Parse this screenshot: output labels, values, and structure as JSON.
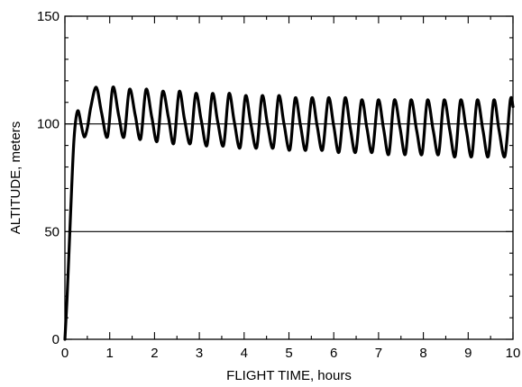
{
  "chart_data": {
    "type": "line",
    "title": "",
    "xlabel": "FLIGHT TIME, hours",
    "ylabel": "ALTITUDE, meters",
    "xlim": [
      0,
      10
    ],
    "ylim": [
      0,
      150
    ],
    "xticks": [
      0,
      1,
      2,
      3,
      4,
      5,
      6,
      7,
      8,
      9,
      10
    ],
    "yticks": [
      0,
      50,
      100,
      150
    ],
    "xtick_labels": [
      "0",
      "1",
      "2",
      "3",
      "4",
      "5",
      "6",
      "7",
      "8",
      "9",
      "10"
    ],
    "ytick_labels": [
      "0",
      "50",
      "100",
      "150"
    ],
    "grid": false,
    "reference_lines_y": [
      50,
      100
    ],
    "line_color": "#000000",
    "series": [
      {
        "x": [
          0,
          0.05,
          0.1,
          0.15,
          0.2,
          0.25,
          0.3,
          0.36,
          0.43,
          0.5,
          0.58,
          0.7,
          0.82,
          0.95,
          1.07,
          1.2,
          1.32,
          1.44,
          1.57,
          1.69,
          1.81,
          1.94,
          2.06,
          2.18,
          2.31,
          2.43,
          2.55,
          2.67,
          2.8,
          2.92,
          3.04,
          3.17,
          3.29,
          3.41,
          3.54,
          3.66,
          3.78,
          3.91,
          4.03,
          4.15,
          4.28,
          4.4,
          4.52,
          4.65,
          4.77,
          4.89,
          5.02,
          5.14,
          5.26,
          5.38,
          5.51,
          5.63,
          5.75,
          5.88,
          6.0,
          6.12,
          6.25,
          6.37,
          6.49,
          6.62,
          6.74,
          6.86,
          6.99,
          7.11,
          7.23,
          7.35,
          7.48,
          7.6,
          7.72,
          7.85,
          7.97,
          8.09,
          8.22,
          8.34,
          8.46,
          8.59,
          8.71,
          8.83,
          8.96,
          9.08,
          9.2,
          9.33,
          9.45,
          9.57,
          9.69,
          9.82,
          9.94,
          10.0
        ],
        "y": [
          0,
          20,
          45,
          70,
          92,
          103,
          106,
          100,
          94,
          98,
          108,
          117,
          105,
          94,
          117,
          104,
          94,
          116,
          104,
          93,
          116,
          103,
          92,
          115,
          103,
          91,
          115,
          102,
          91,
          114,
          102,
          90,
          114,
          101,
          90,
          114,
          101,
          89,
          113,
          100,
          89,
          113,
          100,
          89,
          113,
          100,
          88,
          112,
          99,
          88,
          112,
          99,
          88,
          112,
          99,
          87,
          112,
          98,
          87,
          111,
          98,
          87,
          111,
          98,
          86,
          111,
          98,
          86,
          111,
          97,
          86,
          111,
          97,
          86,
          111,
          97,
          85,
          111,
          97,
          85,
          111,
          97,
          85,
          111,
          97,
          85,
          111,
          108
        ]
      }
    ]
  }
}
